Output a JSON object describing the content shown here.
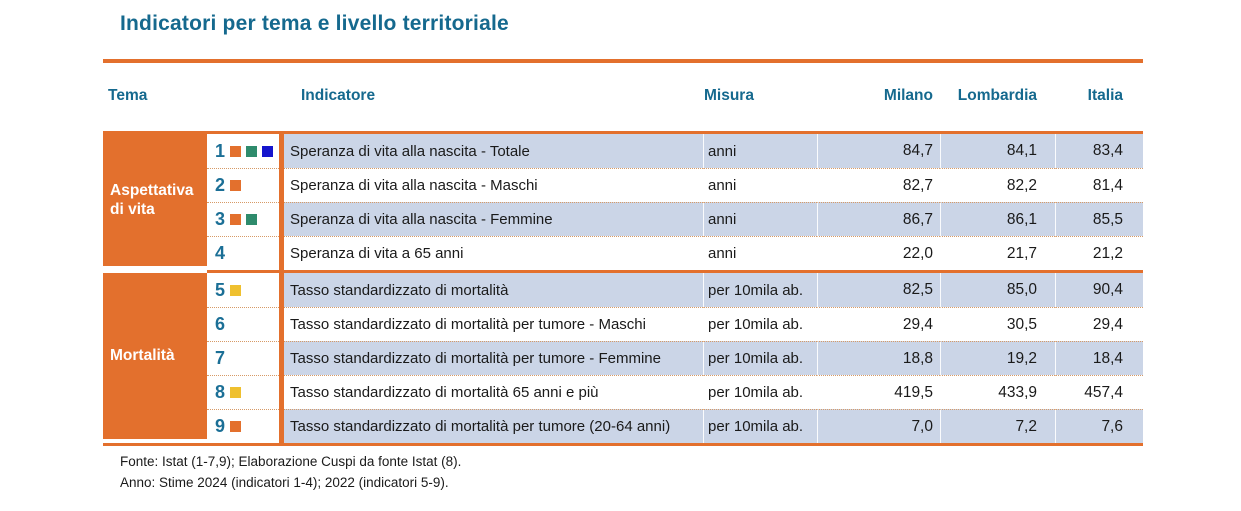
{
  "chart_data": {
    "type": "table",
    "title": "Indicatori per tema e livello territoriale",
    "columns": [
      "Tema",
      "Indicatore",
      "Misura",
      "Milano",
      "Lombardia",
      "Italia"
    ],
    "legend_colors": {
      "orange": "#E3702D",
      "green": "#2E8B6C",
      "blue": "#1515CD",
      "yellow": "#EFC02F"
    },
    "groups": [
      {
        "tema": "Aspettativa di vita",
        "rows": [
          {
            "num": "1",
            "squares": [
              "orange",
              "green",
              "blue"
            ],
            "indicatore": "Speranza di vita alla nascita - Totale",
            "misura": "anni",
            "milano": "84,7",
            "lombardia": "84,1",
            "italia": "83,4"
          },
          {
            "num": "2",
            "squares": [
              "orange"
            ],
            "indicatore": "Speranza di vita alla nascita - Maschi",
            "misura": "anni",
            "milano": "82,7",
            "lombardia": "82,2",
            "italia": "81,4"
          },
          {
            "num": "3",
            "squares": [
              "orange",
              "green"
            ],
            "indicatore": "Speranza di vita alla nascita - Femmine",
            "misura": "anni",
            "milano": "86,7",
            "lombardia": "86,1",
            "italia": "85,5"
          },
          {
            "num": "4",
            "squares": [],
            "indicatore": "Speranza di vita a 65 anni",
            "misura": "anni",
            "milano": "22,0",
            "lombardia": "21,7",
            "italia": "21,2"
          }
        ]
      },
      {
        "tema": "Mortalità",
        "rows": [
          {
            "num": "5",
            "squares": [
              "yellow"
            ],
            "indicatore": "Tasso standardizzato di mortalità",
            "misura": "per 10mila ab.",
            "milano": "82,5",
            "lombardia": "85,0",
            "italia": "90,4"
          },
          {
            "num": "6",
            "squares": [],
            "indicatore": "Tasso standardizzato di mortalità per tumore - Maschi",
            "misura": "per 10mila ab.",
            "milano": "29,4",
            "lombardia": "30,5",
            "italia": "29,4"
          },
          {
            "num": "7",
            "squares": [],
            "indicatore": "Tasso standardizzato di mortalità per tumore - Femmine",
            "misura": "per 10mila ab.",
            "milano": "18,8",
            "lombardia": "19,2",
            "italia": "18,4"
          },
          {
            "num": "8",
            "squares": [
              "yellow"
            ],
            "indicatore": "Tasso standardizzato di mortalità 65 anni e più",
            "misura": "per 10mila ab.",
            "milano": "419,5",
            "lombardia": "433,9",
            "italia": "457,4"
          },
          {
            "num": "9",
            "squares": [
              "orange"
            ],
            "indicatore": "Tasso standardizzato di mortalità per tumore (20-64 anni)",
            "misura": "per 10mila ab.",
            "milano": "7,0",
            "lombardia": "7,2",
            "italia": "7,6"
          }
        ]
      }
    ],
    "layout_colors": {
      "accent_orange": "#E3702D",
      "header_teal": "#15698E",
      "row_highlight": "#CBD5E7"
    }
  },
  "footer": {
    "line1": "Fonte: Istat (1-7,9); Elaborazione Cuspi da fonte Istat (8).",
    "line2": "Anno: Stime 2024 (indicatori 1-4); 2022 (indicatori 5-9)."
  }
}
